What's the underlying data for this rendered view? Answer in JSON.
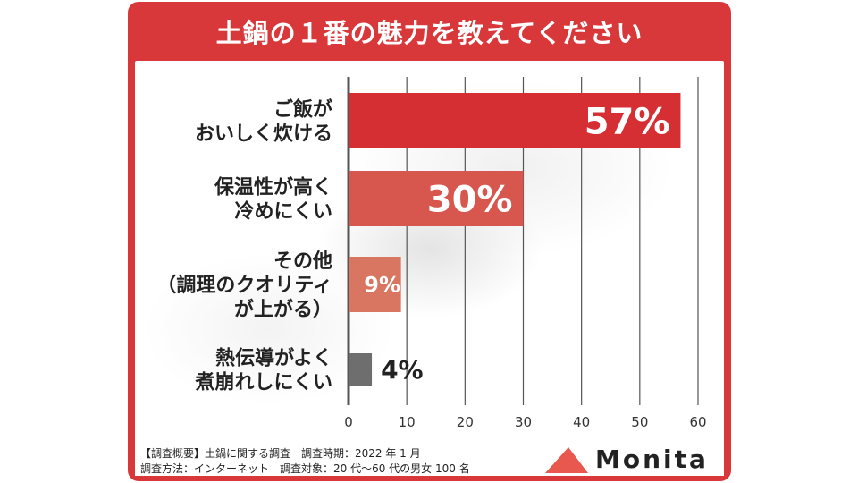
{
  "title": "土鍋の１番の魅力を教えてください",
  "chart_data": {
    "type": "bar",
    "orientation": "horizontal",
    "categories": [
      [
        "ご飯が",
        "おいしく炊ける"
      ],
      [
        "保温性が高く",
        "冷めにくい"
      ],
      [
        "その他",
        "（調理のクオリティ",
        "が上がる）"
      ],
      [
        "熱伝導がよく",
        "煮崩れしにくい"
      ]
    ],
    "values": [
      57,
      30,
      9,
      4
    ],
    "value_labels": [
      "57%",
      "30%",
      "9%",
      "4%"
    ],
    "bar_colors": [
      "#d52f34",
      "#d7574f",
      "#d87662",
      "#6e6e6e"
    ],
    "xlim": [
      0,
      60
    ],
    "xticks": [
      "0",
      "10",
      "20",
      "30",
      "40",
      "50",
      "60"
    ],
    "grid": true,
    "legend": "none"
  },
  "footer": {
    "line1": "【調査概要】土鍋に関する調査　調査時期：2022 年 1 月",
    "line2": "調査方法：インターネット　調査対象：20 代〜60 代の男女 100 名"
  },
  "logo": {
    "text": "Monita",
    "mark_color": "#e8584f"
  },
  "colors": {
    "frame": "#d9383a",
    "grid": "#555555"
  }
}
